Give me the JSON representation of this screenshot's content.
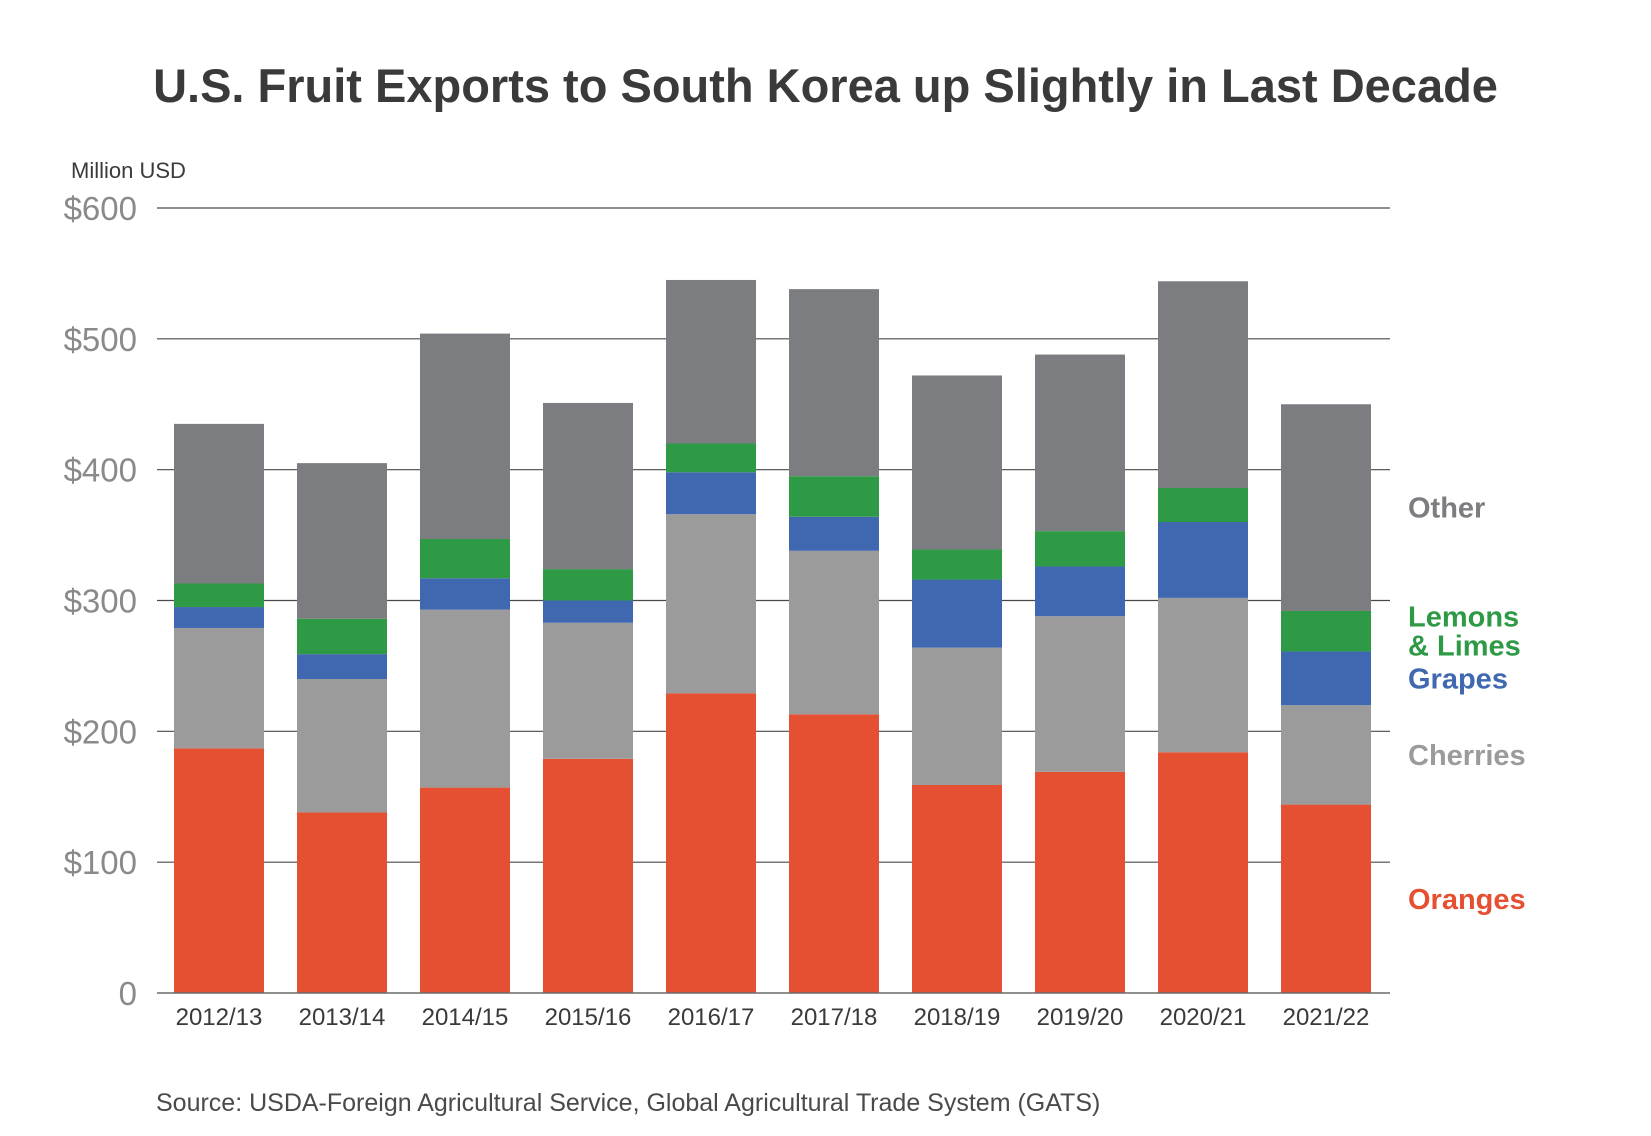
{
  "chart_data": {
    "type": "bar",
    "stacked": true,
    "title": "U.S. Fruit Exports to South Korea up Slightly in Last Decade",
    "ylabel": "Million USD",
    "ylim": [
      0,
      600
    ],
    "yticks": [
      0,
      100,
      200,
      300,
      400,
      500,
      600
    ],
    "ytick_labels": [
      "0",
      "$100",
      "$200",
      "$300",
      "$400",
      "$500",
      "$600"
    ],
    "grid": true,
    "legend_position": "right",
    "categories": [
      "2012/13",
      "2013/14",
      "2014/15",
      "2015/16",
      "2016/17",
      "2017/18",
      "2018/19",
      "2019/20",
      "2020/21",
      "2021/22"
    ],
    "series": [
      {
        "name": "Oranges",
        "color": "#e55032",
        "values": [
          187,
          138,
          157,
          179,
          229,
          213,
          159,
          169,
          184,
          144
        ]
      },
      {
        "name": "Cherries",
        "color": "#9b9b9b",
        "values": [
          92,
          102,
          136,
          104,
          137,
          125,
          105,
          119,
          118,
          76
        ]
      },
      {
        "name": "Grapes",
        "color": "#3f68b1",
        "values": [
          16,
          19,
          24,
          17,
          32,
          26,
          52,
          38,
          58,
          41
        ]
      },
      {
        "name": "Lemons & Limes",
        "label_lines": [
          "Lemons",
          "& Limes"
        ],
        "color": "#2f9a46",
        "values": [
          18,
          27,
          30,
          24,
          22,
          31,
          23,
          27,
          26,
          31
        ]
      },
      {
        "name": "Other",
        "color": "#7c7d80",
        "values": [
          122,
          119,
          157,
          127,
          125,
          143,
          133,
          135,
          158,
          158
        ]
      }
    ]
  },
  "source": "Source: USDA-Foreign Agricultural Service, Global Agricultural Trade System (GATS)"
}
